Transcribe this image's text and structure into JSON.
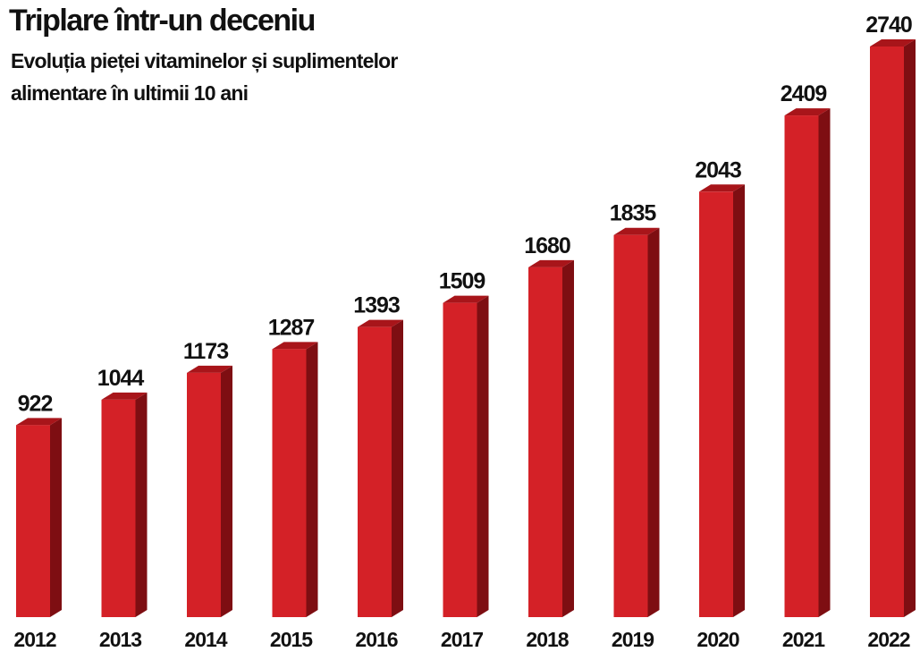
{
  "chart_data": {
    "type": "bar3d",
    "title": "Triplare într-un deceniu",
    "subtitle": [
      "Evoluția pieței vitaminelor și suplimentelor",
      "alimentare în ultimii 10 ani"
    ],
    "categories": [
      "2012",
      "2013",
      "2014",
      "2015",
      "2016",
      "2017",
      "2018",
      "2019",
      "2020",
      "2021",
      "2022"
    ],
    "values": [
      922,
      1044,
      1173,
      1287,
      1393,
      1509,
      1680,
      1835,
      2043,
      2409,
      2740
    ],
    "color": "#d42127"
  }
}
